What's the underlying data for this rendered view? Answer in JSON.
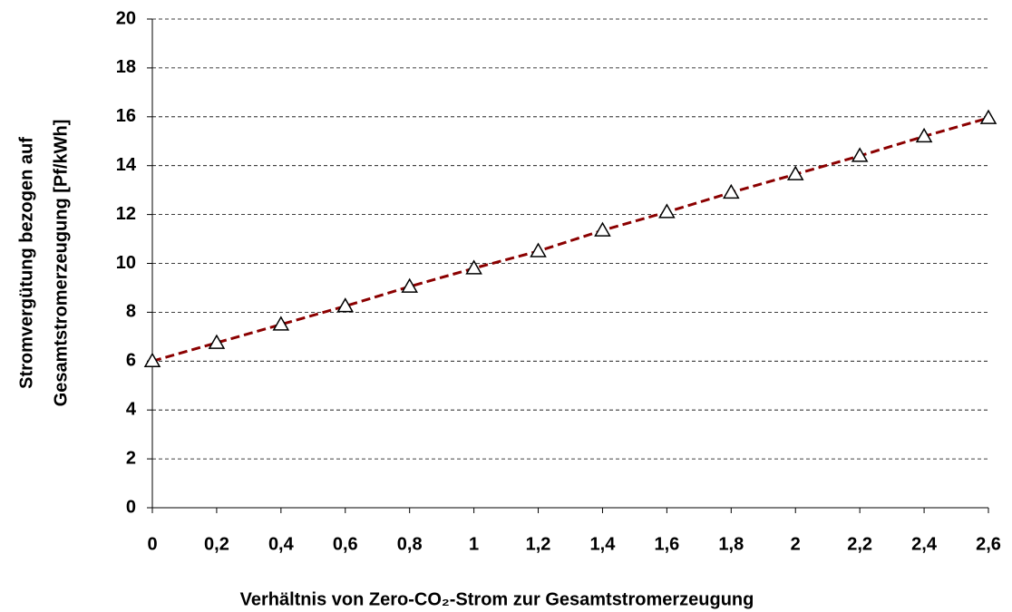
{
  "chart_data": {
    "type": "line",
    "xlabel": "Verhältnis von Zero-CO₂-Strom zur Gesamtstromerzeugung",
    "ylabel": [
      "Stromvergütung bezogen auf",
      "Gesamtstromerzeugung [Pf/kWh]"
    ],
    "x": [
      0,
      0.2,
      0.4,
      0.6,
      0.8,
      1,
      1.2,
      1.4,
      1.6,
      1.8,
      2,
      2.2,
      2.4,
      2.6
    ],
    "values": [
      6.0,
      6.75,
      7.5,
      8.25,
      9.05,
      9.8,
      10.5,
      11.35,
      12.1,
      12.9,
      13.65,
      14.4,
      15.2,
      15.95
    ],
    "color": "#8b0000",
    "marker": "triangle",
    "dashed": true,
    "xlim": [
      0,
      2.6
    ],
    "xticks": [
      0,
      {
        "value": 0.2,
        "label": "0,2"
      },
      {
        "value": 0.4,
        "label": "0,4"
      },
      {
        "value": 0.6,
        "label": "0,6"
      },
      {
        "value": 0.8,
        "label": "0,8"
      },
      1,
      {
        "value": 1.2,
        "label": "1,2"
      },
      {
        "value": 1.4,
        "label": "1,4"
      },
      {
        "value": 1.6,
        "label": "1,6"
      },
      {
        "value": 1.8,
        "label": "1,8"
      },
      2,
      {
        "value": 2.2,
        "label": "2,2"
      },
      {
        "value": 2.4,
        "label": "2,4"
      },
      {
        "value": 2.6,
        "label": "2,6"
      }
    ],
    "ylim": [
      0,
      20
    ],
    "yticks": [
      0,
      2,
      4,
      6,
      8,
      10,
      12,
      14,
      16,
      18,
      20
    ],
    "grid": true
  }
}
